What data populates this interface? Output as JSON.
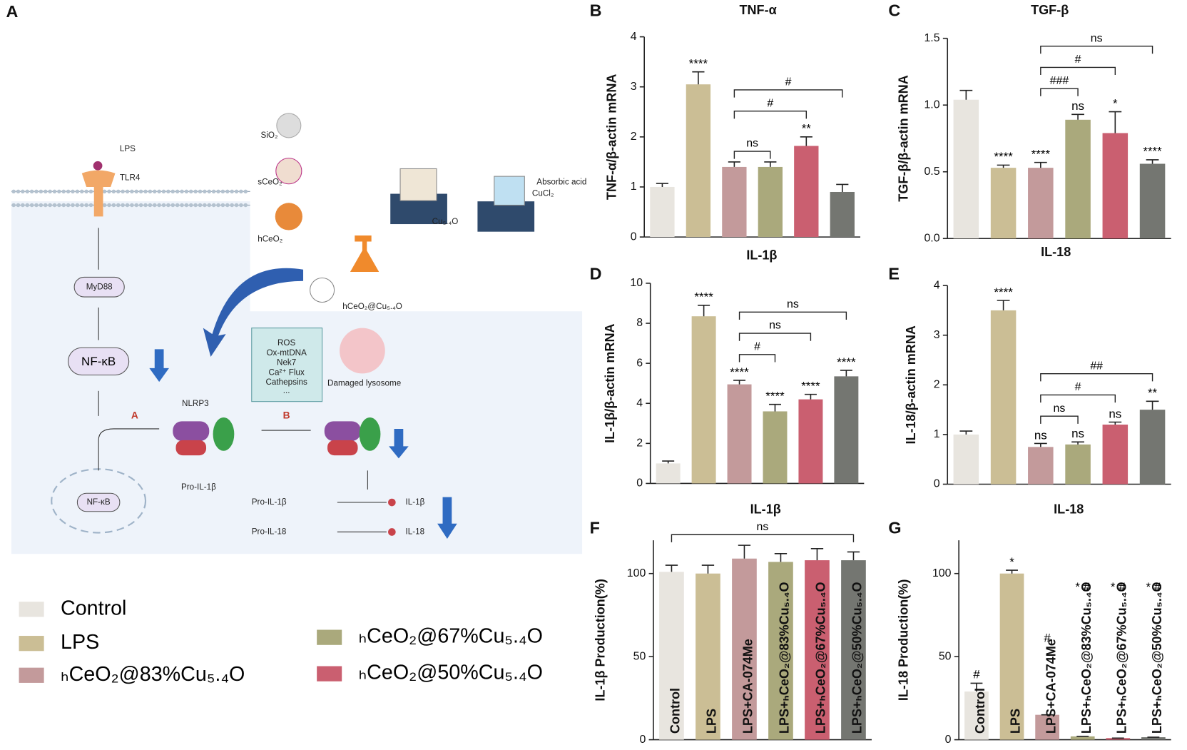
{
  "diagram": {
    "panel": "A",
    "lps": "LPS",
    "tlr4": "TLR4",
    "myd88": "MyD88",
    "nfkb": "NF-κB",
    "nlrp3": "NLRP3",
    "path_a": "A",
    "path_b": "B",
    "nfkb2": "NF-κB",
    "pro_il1b": "Pro-IL-1β",
    "ros": "ROS",
    "oxmt": "Ox-mtDNA",
    "nek7": "Nek7",
    "ca": "Ca²⁺ Flux",
    "cath": "Cathepsins",
    "dots": "...",
    "lyso": "Damaged lysosome",
    "pro_il1b2": "Pro-IL-1β",
    "il1b": "IL-1β",
    "pro_il18": "Pro-IL-18",
    "il18": "IL-18",
    "sio2": "SiO₂",
    "sceo2": "sCeO₂",
    "hceo2": "hCeO₂",
    "cu": "Cu₅.₄O",
    "cucl2": "CuCl₂",
    "acid": "Absorbic acid",
    "product": "hCeO₂@Cu₅.₄O"
  },
  "legend": {
    "entries": [
      {
        "name": "Control",
        "color": "#e8e5df"
      },
      {
        "name": "LPS",
        "color": "#cbbe95"
      },
      {
        "name": "ₕCeO₂@83%Cu₅.₄O",
        "color": "#c39a9b"
      },
      {
        "name": "ₕCeO₂@67%Cu₅.₄O",
        "color": "#aaa97c"
      },
      {
        "name": "ₕCeO₂@50%Cu₅.₄O",
        "color": "#ca5f70"
      }
    ]
  },
  "chart_data": [
    {
      "type": "bar",
      "panel": "B",
      "title": "TNF-α",
      "ylabel": "TNF-α/β-actin mRNA",
      "ylim": [
        0,
        4
      ],
      "yticks": [
        0,
        1,
        2,
        3,
        4
      ],
      "values": [
        1.0,
        3.05,
        1.4,
        1.4,
        1.82,
        0.9
      ],
      "errors": [
        0.07,
        0.25,
        0.1,
        0.1,
        0.18,
        0.15
      ],
      "colors": [
        "#e8e5df",
        "#cbbe95",
        "#c39a9b",
        "#aaa97c",
        "#ca5f70",
        "#747671"
      ],
      "annotations": [
        null,
        "****",
        null,
        null,
        "**",
        null
      ],
      "brackets": [
        {
          "from": 2,
          "to": 3,
          "label": "ns"
        },
        {
          "from": 2,
          "to": 4,
          "label": "#"
        },
        {
          "from": 2,
          "to": 5,
          "label": "#"
        }
      ]
    },
    {
      "type": "bar",
      "panel": "C",
      "title": "TGF-β",
      "ylabel": "TGF-β/β-actin mRNA",
      "ylim": [
        0,
        1.5
      ],
      "yticks": [
        {
          "value": 0,
          "label": "0.0"
        },
        0.5,
        {
          "value": 1,
          "label": "1.0"
        },
        1.5
      ],
      "values": [
        1.04,
        0.53,
        0.53,
        0.89,
        0.79,
        0.56
      ],
      "errors": [
        0.07,
        0.02,
        0.04,
        0.04,
        0.16,
        0.03
      ],
      "colors": [
        "#e8e5df",
        "#cbbe95",
        "#c39a9b",
        "#aaa97c",
        "#ca5f70",
        "#747671"
      ],
      "annotations": [
        null,
        "****",
        "****",
        "ns",
        "*",
        "****"
      ],
      "brackets": [
        {
          "from": 2,
          "to": 3,
          "label": "###"
        },
        {
          "from": 2,
          "to": 4,
          "label": "#"
        },
        {
          "from": 2,
          "to": 5,
          "label": "ns"
        }
      ]
    },
    {
      "type": "bar",
      "panel": "D",
      "title": "IL-1β",
      "ylabel": "IL-1β/β-actin mRNA",
      "ylim": [
        0,
        10
      ],
      "yticks": [
        0,
        2,
        4,
        6,
        8,
        10
      ],
      "values": [
        1.0,
        8.35,
        4.95,
        3.6,
        4.2,
        5.35
      ],
      "errors": [
        0.12,
        0.55,
        0.2,
        0.35,
        0.25,
        0.3
      ],
      "colors": [
        "#e8e5df",
        "#cbbe95",
        "#c39a9b",
        "#aaa97c",
        "#ca5f70",
        "#747671"
      ],
      "annotations": [
        null,
        "****",
        "****",
        "****",
        "****",
        "****"
      ],
      "brackets": [
        {
          "from": 2,
          "to": 3,
          "label": "#"
        },
        {
          "from": 2,
          "to": 4,
          "label": "ns"
        },
        {
          "from": 2,
          "to": 5,
          "label": "ns"
        }
      ]
    },
    {
      "type": "bar",
      "panel": "E",
      "title": "IL-18",
      "ylabel": "IL-18/β-actin mRNA",
      "ylim": [
        0,
        4
      ],
      "yticks": [
        0,
        1,
        2,
        3,
        4
      ],
      "values": [
        1.0,
        3.5,
        0.75,
        0.8,
        1.2,
        1.5
      ],
      "errors": [
        0.07,
        0.2,
        0.07,
        0.05,
        0.05,
        0.17
      ],
      "colors": [
        "#e8e5df",
        "#cbbe95",
        "#c39a9b",
        "#aaa97c",
        "#ca5f70",
        "#747671"
      ],
      "annotations": [
        null,
        "****",
        "ns",
        "ns",
        "ns",
        "**"
      ],
      "brackets": [
        {
          "from": 2,
          "to": 3,
          "label": "ns"
        },
        {
          "from": 2,
          "to": 4,
          "label": "#"
        },
        {
          "from": 2,
          "to": 5,
          "label": "##"
        }
      ]
    },
    {
      "type": "bar",
      "panel": "F",
      "title": "IL-1β",
      "ylabel": "IL-1β Production(%)",
      "ylim": [
        0,
        120
      ],
      "yticks": [
        0,
        50,
        100
      ],
      "categories": [
        "Control",
        "LPS",
        "LPS+CA-074Me",
        "LPS+ₕCeO₂@83%Cu₅.₄O",
        "LPS+ₕCeO₂@67%Cu₅.₄O",
        "LPS+ₕCeO₂@50%Cu₅.₄O"
      ],
      "values": [
        101,
        100,
        109,
        107,
        108,
        108
      ],
      "errors": [
        4,
        5,
        8,
        5,
        7,
        5
      ],
      "colors": [
        "#e8e5df",
        "#cbbe95",
        "#c39a9b",
        "#aaa97c",
        "#ca5f70",
        "#747671"
      ],
      "brackets": [
        {
          "from": 0,
          "to": 5,
          "label": "ns"
        }
      ]
    },
    {
      "type": "bar",
      "panel": "G",
      "title": "IL-18",
      "ylabel": "IL-18 Production(%)",
      "ylim": [
        0,
        120
      ],
      "yticks": [
        0,
        50,
        100
      ],
      "categories": [
        "Control",
        "LPS",
        "LPS+CA-074Me",
        "LPS+ₕCeO₂@83%Cu₅.₄O",
        "LPS+ₕCeO₂@67%Cu₅.₄O",
        "LPS+ₕCeO₂@50%Cu₅.₄O"
      ],
      "values": [
        29,
        100,
        15,
        2,
        1,
        1.5
      ],
      "errors": [
        5,
        2,
        0,
        0,
        0,
        0
      ],
      "colors": [
        "#e8e5df",
        "#cbbe95",
        "#c39a9b",
        "#aaa97c",
        "#ca5f70",
        "#747671"
      ],
      "annotations": [
        "#",
        "*",
        "#",
        "* #",
        "* #",
        "* #"
      ]
    }
  ]
}
